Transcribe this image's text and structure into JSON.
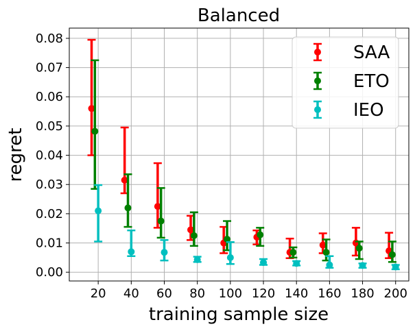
{
  "chart_data": {
    "type": "scatter",
    "title": "Balanced",
    "xlabel": "training sample size",
    "ylabel": "regret",
    "categories": [
      20,
      40,
      60,
      80,
      100,
      120,
      140,
      160,
      180,
      200
    ],
    "x_ticks": [
      "20",
      "40",
      "60",
      "80",
      "100",
      "120",
      "140",
      "160",
      "180",
      "200"
    ],
    "y_ticks": [
      "0.00",
      "0.01",
      "0.02",
      "0.03",
      "0.04",
      "0.05",
      "0.06",
      "0.07",
      "0.08"
    ],
    "xlim": [
      2.5,
      208
    ],
    "ylim": [
      -0.003,
      0.0835
    ],
    "grid": true,
    "legend_position": "top-right",
    "series": [
      {
        "name": "SAA",
        "color": "#ff0000",
        "offset": -4,
        "values": [
          0.056,
          0.0315,
          0.0225,
          0.0145,
          0.01,
          0.012,
          0.0068,
          0.0093,
          0.01,
          0.0073
        ],
        "lower": [
          0.04,
          0.027,
          0.0152,
          0.011,
          0.0065,
          0.0095,
          0.0048,
          0.0065,
          0.0057,
          0.0048
        ],
        "upper": [
          0.0795,
          0.0495,
          0.0373,
          0.0193,
          0.0155,
          0.0143,
          0.0115,
          0.0133,
          0.0152,
          0.0135
        ]
      },
      {
        "name": "ETO",
        "color": "#008000",
        "offset": -2,
        "values": [
          0.0482,
          0.022,
          0.0175,
          0.0125,
          0.0113,
          0.0128,
          0.0068,
          0.0068,
          0.0082,
          0.006
        ],
        "lower": [
          0.0285,
          0.0155,
          0.0118,
          0.009,
          0.0075,
          0.009,
          0.005,
          0.004,
          0.0045,
          0.0035
        ],
        "upper": [
          0.0725,
          0.0335,
          0.0288,
          0.0205,
          0.0175,
          0.0152,
          0.0085,
          0.0112,
          0.0105,
          0.0105
        ]
      },
      {
        "name": "IEO",
        "color": "#00bfbf",
        "offset": 0,
        "values": [
          0.021,
          0.007,
          0.0068,
          0.0043,
          0.005,
          0.0033,
          0.003,
          0.0025,
          0.0023,
          0.0018
        ],
        "lower": [
          0.0105,
          0.0055,
          0.004,
          0.0035,
          0.0028,
          0.0025,
          0.0023,
          0.0015,
          0.0015,
          0.001
        ],
        "upper": [
          0.0298,
          0.0143,
          0.011,
          0.0053,
          0.0103,
          0.0045,
          0.0038,
          0.0055,
          0.003,
          0.0025
        ]
      }
    ]
  }
}
